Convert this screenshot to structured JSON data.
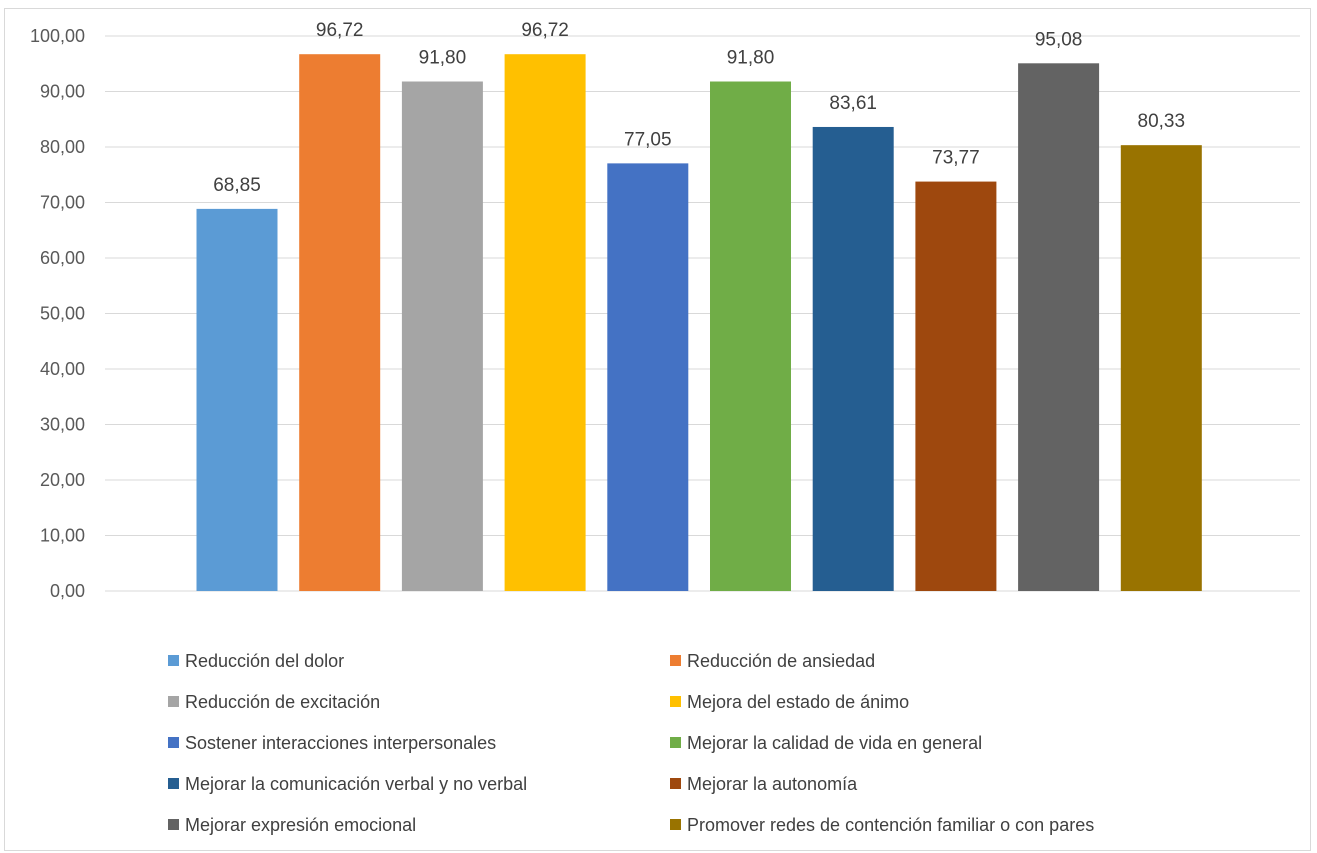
{
  "chart_data": {
    "type": "bar",
    "categories": [
      "Reducción del dolor",
      "Reducción de ansiedad",
      "Reducción de excitación",
      "Mejora del estado de ánimo",
      "Sostener interacciones interpersonales",
      "Mejorar la calidad de vida en general",
      "Mejorar la comunicación verbal y no verbal",
      "Mejorar la autonomía",
      "Mejorar expresión emocional",
      "Promover redes de contención familiar o con pares"
    ],
    "values": [
      68.85,
      96.72,
      91.8,
      96.72,
      77.05,
      91.8,
      83.61,
      73.77,
      95.08,
      80.33
    ],
    "data_labels": [
      "68,85",
      "96,72",
      "91,80",
      "96,72",
      "77,05",
      "91,80",
      "83,61",
      "73,77",
      "95,08",
      "80,33"
    ],
    "colors": [
      "#5b9bd5",
      "#ed7d31",
      "#a5a5a5",
      "#ffc000",
      "#4472c4",
      "#70ad47",
      "#255e91",
      "#9e480e",
      "#636363",
      "#997300"
    ],
    "ylim": [
      0,
      100
    ],
    "yticks": [
      0,
      10,
      20,
      30,
      40,
      50,
      60,
      70,
      80,
      90,
      100
    ],
    "ytick_labels": [
      "0,00",
      "10,00",
      "20,00",
      "30,00",
      "40,00",
      "50,00",
      "60,00",
      "70,00",
      "80,00",
      "90,00",
      "100,00"
    ],
    "title": "",
    "xlabel": "",
    "ylabel": "",
    "grid": true,
    "legend_position": "bottom, two columns",
    "gridline_color": "#d9d9d9"
  }
}
